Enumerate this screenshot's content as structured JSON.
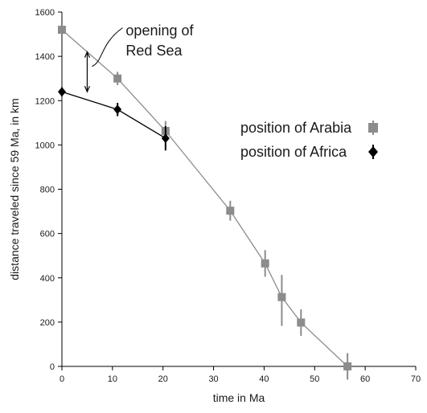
{
  "chart_data": {
    "type": "scatter",
    "title": "",
    "xlabel": "time in Ma",
    "ylabel": "distance traveled since 59 Ma, in km",
    "xlim": [
      0,
      70
    ],
    "ylim": [
      0,
      1600
    ],
    "xticks": [
      0,
      10,
      20,
      30,
      40,
      50,
      60,
      70
    ],
    "yticks": [
      0,
      200,
      400,
      600,
      800,
      1000,
      1200,
      1400,
      1600
    ],
    "grid": false,
    "legend_position": "right",
    "series": [
      {
        "name": "position of Arabia",
        "marker": "square",
        "color": "#8c8c8c",
        "x": [
          0,
          11,
          20.5,
          33.3,
          40.2,
          43.5,
          47.3,
          56.5
        ],
        "y": [
          1520,
          1300,
          1063,
          703,
          465,
          313,
          198,
          0
        ],
        "err_low": [
          0,
          30,
          45,
          45,
          60,
          130,
          60,
          60
        ],
        "err_high": [
          0,
          30,
          45,
          45,
          60,
          100,
          60,
          60
        ]
      },
      {
        "name": "position of Africa",
        "marker": "diamond",
        "color": "#000000",
        "x": [
          0,
          11,
          20.5
        ],
        "y": [
          1240,
          1160,
          1030
        ],
        "err_low": [
          20,
          30,
          55
        ],
        "err_high": [
          20,
          30,
          55
        ]
      }
    ],
    "annotation": {
      "text_lines": [
        "opening of",
        "Red Sea"
      ],
      "x": 5,
      "y_range": [
        1240,
        1420
      ]
    }
  }
}
